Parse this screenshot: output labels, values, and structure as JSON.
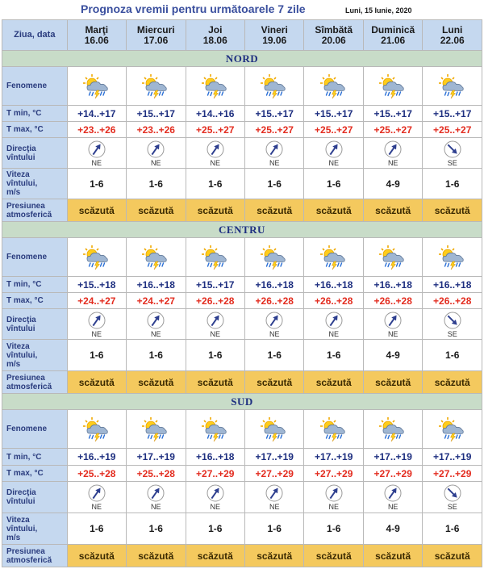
{
  "header": {
    "title": "Prognoza vremii pentru următoarele 7 zile",
    "date": "Luni, 15 Iunie, 2020"
  },
  "labels": {
    "day_col": "Ziua, data",
    "phenomena": "Fenomene",
    "tmin": "T min, °C",
    "tmax": "T max, °C",
    "wind_dir_1": "Direcţia",
    "wind_dir_2": "vîntului",
    "wind_speed_1": "Viteza",
    "wind_speed_2": "vîntului,",
    "wind_speed_3": "m/s",
    "pressure_1": "Presiunea",
    "pressure_2": "atmosferică"
  },
  "days": [
    {
      "name": "Marţi",
      "date": "16.06"
    },
    {
      "name": "Miercuri",
      "date": "17.06"
    },
    {
      "name": "Joi",
      "date": "18.06"
    },
    {
      "name": "Vineri",
      "date": "19.06"
    },
    {
      "name": "Sîmbătă",
      "date": "20.06"
    },
    {
      "name": "Duminică",
      "date": "21.06"
    },
    {
      "name": "Luni",
      "date": "22.06"
    }
  ],
  "icons": {
    "weather": "sun-cloud-thunder-rain-icon",
    "wind": "compass-arrow-icon"
  },
  "colors": {
    "label_bg": "#c5d8ef",
    "region_bg": "#c8dcc8",
    "pressure_bg": "#f4c95e",
    "tmin": "#1e2f80",
    "tmax": "#e32c1f"
  },
  "regions": [
    {
      "name": "NORD",
      "tmin": [
        "+14..+17",
        "+15..+17",
        "+14..+16",
        "+15..+17",
        "+15..+17",
        "+15..+17",
        "+15..+17"
      ],
      "tmax": [
        "+23..+26",
        "+23..+26",
        "+25..+27",
        "+25..+27",
        "+25..+27",
        "+25..+27",
        "+25..+27"
      ],
      "wind_dir": [
        "NE",
        "NE",
        "NE",
        "NE",
        "NE",
        "NE",
        "SE"
      ],
      "wind_speed": [
        "1-6",
        "1-6",
        "1-6",
        "1-6",
        "1-6",
        "4-9",
        "1-6"
      ],
      "pressure": [
        "scăzută",
        "scăzută",
        "scăzută",
        "scăzută",
        "scăzută",
        "scăzută",
        "scăzută"
      ]
    },
    {
      "name": "CENTRU",
      "tmin": [
        "+15..+18",
        "+16..+18",
        "+15..+17",
        "+16..+18",
        "+16..+18",
        "+16..+18",
        "+16..+18"
      ],
      "tmax": [
        "+24..+27",
        "+24..+27",
        "+26..+28",
        "+26..+28",
        "+26..+28",
        "+26..+28",
        "+26..+28"
      ],
      "wind_dir": [
        "NE",
        "NE",
        "NE",
        "NE",
        "NE",
        "NE",
        "SE"
      ],
      "wind_speed": [
        "1-6",
        "1-6",
        "1-6",
        "1-6",
        "1-6",
        "4-9",
        "1-6"
      ],
      "pressure": [
        "scăzută",
        "scăzută",
        "scăzută",
        "scăzută",
        "scăzută",
        "scăzută",
        "scăzută"
      ]
    },
    {
      "name": "SUD",
      "tmin": [
        "+16..+19",
        "+17..+19",
        "+16..+18",
        "+17..+19",
        "+17..+19",
        "+17..+19",
        "+17..+19"
      ],
      "tmax": [
        "+25..+28",
        "+25..+28",
        "+27..+29",
        "+27..+29",
        "+27..+29",
        "+27..+29",
        "+27..+29"
      ],
      "wind_dir": [
        "NE",
        "NE",
        "NE",
        "NE",
        "NE",
        "NE",
        "SE"
      ],
      "wind_speed": [
        "1-6",
        "1-6",
        "1-6",
        "1-6",
        "1-6",
        "4-9",
        "1-6"
      ],
      "pressure": [
        "scăzută",
        "scăzută",
        "scăzută",
        "scăzută",
        "scăzută",
        "scăzută",
        "scăzută"
      ]
    }
  ]
}
